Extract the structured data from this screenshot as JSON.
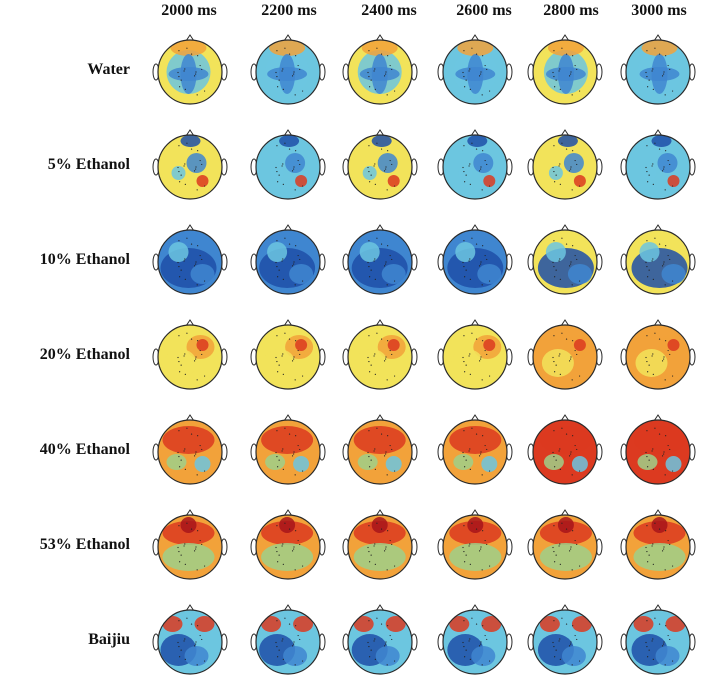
{
  "columns": [
    "2000 ms",
    "2200 ms",
    "2400 ms",
    "2600 ms",
    "2800 ms",
    "3000 ms"
  ],
  "rows": [
    "Water",
    "5% Ethanol",
    "10% Ethanol",
    "20% Ethanol",
    "40% Ethanol",
    "53% Ethanol",
    "Baijiu"
  ],
  "colors": {
    "deep_blue": "#1f4fa8",
    "blue": "#3f86d0",
    "cyan": "#6cc6e0",
    "green": "#9fd08a",
    "yellow": "#f2e35a",
    "orange": "#f2a23a",
    "red": "#dc3a20",
    "dark_red": "#a8141a",
    "outline": "#2a2a2a"
  },
  "palettes": [
    [
      "yellow",
      "cyan",
      "yellow",
      "cyan",
      "yellow",
      "cyan"
    ],
    [
      "yellow",
      "cyan",
      "yellow",
      "cyan",
      "yellow",
      "cyan"
    ],
    [
      "blue",
      "blue",
      "blue",
      "blue",
      "yellow",
      "yellow"
    ],
    [
      "yellow",
      "yellow",
      "yellow",
      "yellow",
      "orange",
      "orange"
    ],
    [
      "orange",
      "orange",
      "orange",
      "orange",
      "red",
      "red"
    ],
    [
      "orange",
      "orange",
      "orange",
      "orange",
      "orange",
      "orange"
    ],
    [
      "cyan",
      "cyan",
      "cyan",
      "cyan",
      "cyan",
      "cyan"
    ]
  ]
}
